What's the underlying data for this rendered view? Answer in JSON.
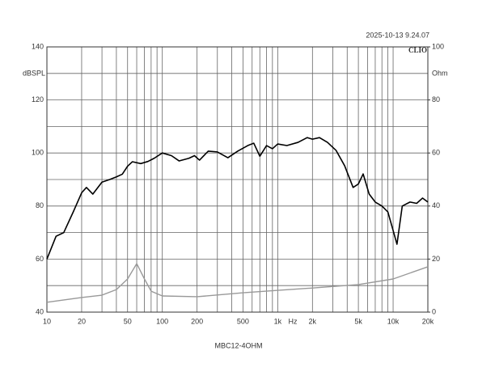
{
  "chart_data": {
    "type": "line",
    "timestamp": "2025-10-13 9.24.07",
    "brand": "CLIO",
    "ylabel": "dBSPL",
    "y2label": "Ohm",
    "xlabel": "Hz",
    "caption": "MBC12-4OHM",
    "xscale": "log",
    "xlim": [
      10,
      20000
    ],
    "xticks": [
      10,
      20,
      50,
      100,
      200,
      500,
      {
        "value": 1000,
        "label": "1k"
      },
      {
        "value": 2000,
        "label": "2k"
      },
      {
        "value": 5000,
        "label": "5k"
      },
      {
        "value": 10000,
        "label": "10k"
      },
      {
        "value": 20000,
        "label": "20k"
      }
    ],
    "xminor": [
      30,
      40,
      60,
      70,
      80,
      90,
      300,
      400,
      600,
      700,
      800,
      900,
      3000,
      4000,
      6000,
      7000,
      8000,
      9000
    ],
    "ylim": [
      40,
      140
    ],
    "yticks": [
      40,
      60,
      80,
      100,
      120,
      140
    ],
    "yminor": [
      50,
      70,
      90,
      110,
      130
    ],
    "y2lim": [
      0,
      100
    ],
    "y2ticks": [
      0,
      20,
      40,
      60,
      80,
      100
    ],
    "grid": true,
    "series": [
      {
        "color": "#000000",
        "axis": "y",
        "x": [
          10,
          12,
          14,
          17,
          20,
          22,
          25,
          30,
          35,
          40,
          45,
          50,
          55,
          65,
          75,
          85,
          100,
          120,
          140,
          170,
          190,
          210,
          250,
          300,
          370,
          450,
          550,
          620,
          700,
          800,
          900,
          1000,
          1200,
          1500,
          1800,
          2000,
          2300,
          2700,
          3200,
          3800,
          4500,
          5000,
          5500,
          6200,
          7000,
          8000,
          9000,
          10000,
          10800,
          12000,
          14000,
          16000,
          18000,
          20000
        ],
        "values": [
          60,
          68.6,
          70,
          78,
          85,
          87,
          84.5,
          89,
          90,
          91,
          92,
          95,
          96.7,
          96,
          96.8,
          98,
          100,
          99,
          97,
          98,
          99,
          97.3,
          100.7,
          100.4,
          98.2,
          100.7,
          102.8,
          103.7,
          98.8,
          102.8,
          101.6,
          103.4,
          102.8,
          104,
          105.8,
          105.2,
          105.8,
          104,
          101,
          95.2,
          87,
          88.3,
          92.1,
          84.5,
          81.5,
          80,
          77.8,
          70.8,
          65.6,
          80,
          81.5,
          81,
          83,
          81.5
        ]
      },
      {
        "color": "#999999",
        "axis": "y2",
        "x": [
          10,
          20,
          30,
          40,
          50,
          60,
          70,
          80,
          100,
          200,
          500,
          1000,
          2000,
          5000,
          10000,
          20000
        ],
        "values": [
          3.7,
          5.5,
          6.4,
          8.5,
          12.5,
          18.3,
          12.5,
          7.9,
          6.1,
          5.8,
          7.3,
          8.2,
          9.1,
          10.4,
          12.5,
          17.1
        ]
      }
    ]
  }
}
